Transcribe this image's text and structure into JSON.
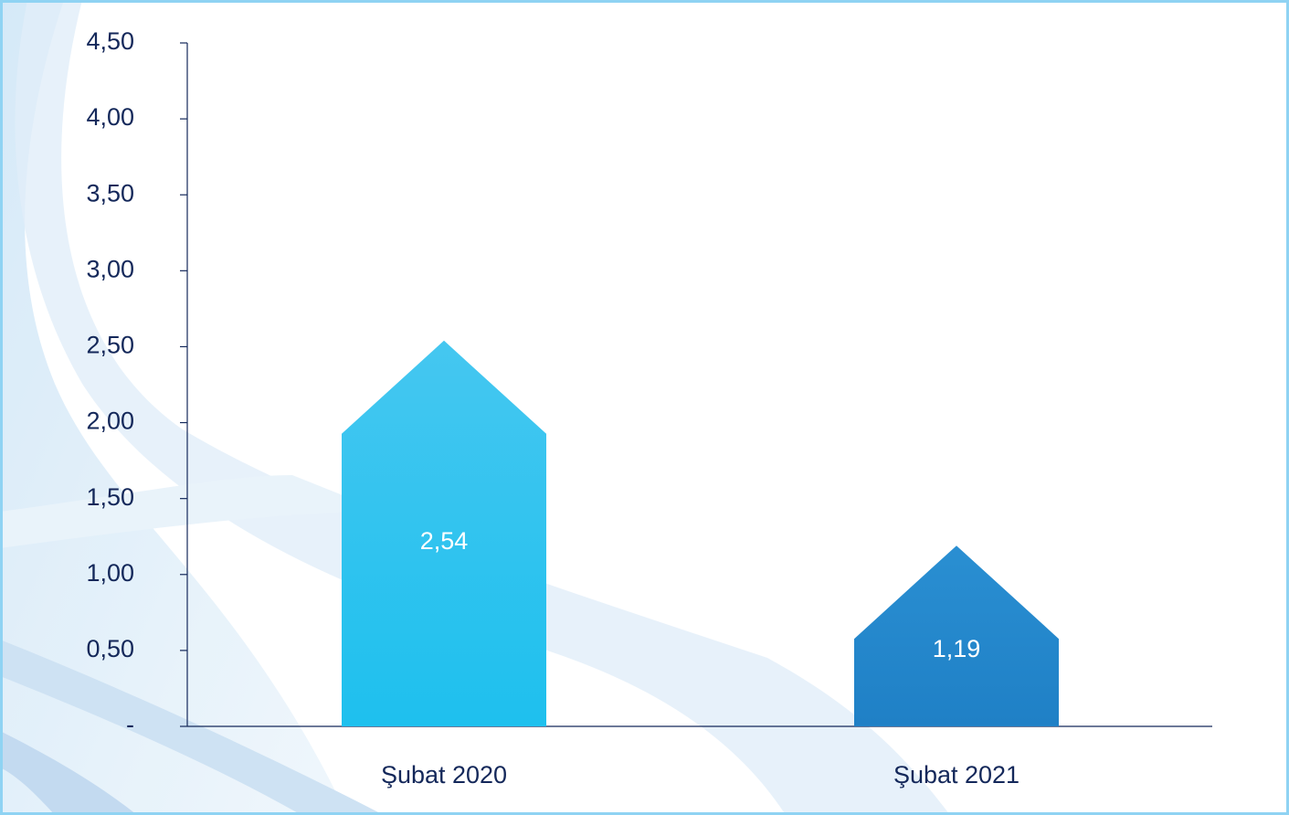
{
  "chart_data": {
    "type": "bar",
    "categories": [
      "Şubat 2020",
      "Şubat 2021"
    ],
    "values": [
      2.54,
      1.19
    ],
    "value_labels": [
      "2,54",
      "1,19"
    ],
    "colors": [
      "#1ec0ee",
      "#1f80c6"
    ],
    "ylim": [
      0,
      4.5
    ],
    "yticks": [
      {
        "value": 0,
        "label": "-"
      },
      {
        "value": 0.5,
        "label": "0,50"
      },
      {
        "value": 1,
        "label": "1,00"
      },
      {
        "value": 1.5,
        "label": "1,50"
      },
      {
        "value": 2,
        "label": "2,00"
      },
      {
        "value": 2.5,
        "label": "2,50"
      },
      {
        "value": 3,
        "label": "3,00"
      },
      {
        "value": 3.5,
        "label": "3,50"
      },
      {
        "value": 4,
        "label": "4,00"
      },
      {
        "value": 4.5,
        "label": "4,50"
      }
    ],
    "grid": false
  }
}
